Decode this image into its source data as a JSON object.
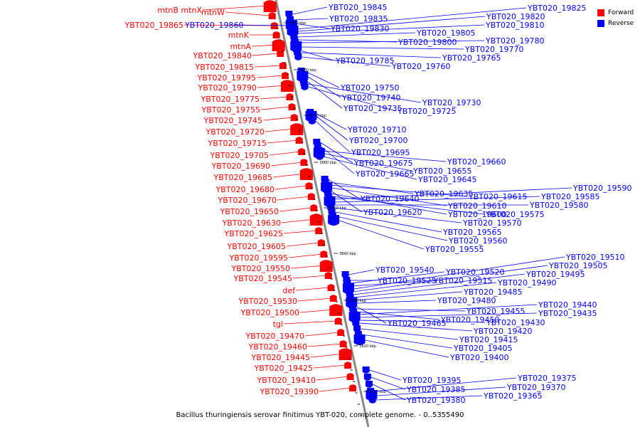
{
  "caption": "Bacillus thuringiensis serovar finitimus YBT-020, complete genome. - 0..5355490",
  "colors": {
    "forward": "#ff0000",
    "reverse": "#0000ff",
    "axis": "#888888",
    "text": "#000000"
  },
  "legend": [
    {
      "label": "Forward",
      "color": "#ff0000"
    },
    {
      "label": "Reverse",
      "color": "#0000ff"
    }
  ],
  "scale_labels": [
    "3890 kbp",
    "3880 kbp",
    "3870 kbp",
    "3860 kbp",
    "3850 kbp",
    "3840 kbp",
    "3830 kbp",
    "3820 kbp",
    "3810 kbp"
  ],
  "forward_labels": [
    "mtnB mtnX",
    "mtnW",
    "YBT020_19865",
    "mtnK",
    "mtnA",
    "YBT020_19840",
    "YBT020_19815",
    "YBT020_19795",
    "YBT020_19790",
    "YBT020_19775",
    "YBT020_19755",
    "YBT020_19745",
    "YBT020_19720",
    "YBT020_19715",
    "YBT020_19705",
    "YBT020_19690",
    "YBT020_19685",
    "YBT020_19680",
    "YBT020_19670",
    "YBT020_19650",
    "YBT020_19630",
    "YBT020_19625",
    "YBT020_19605",
    "YBT020_19595",
    "YBT020_19550",
    "YBT020_19545",
    "def",
    "YBT020_19530",
    "YBT020_19500",
    "tgl",
    "YBT020_19470",
    "YBT020_19460",
    "YBT020_19445",
    "YBT020_19425",
    "YBT020_19410",
    "YBT020_19390"
  ],
  "reverse_labels": [
    "YBT020_19860",
    "YBT020_19845",
    "YBT020_19835",
    "YBT020_19830",
    "YBT020_19825",
    "YBT020_19820",
    "YBT020_19810",
    "YBT020_19805",
    "YBT020_19800",
    "YBT020_19780",
    "YBT020_19770",
    "YBT020_19785",
    "YBT020_19765",
    "YBT020_19760",
    "YBT020_19750",
    "YBT020_19740",
    "YBT020_19735",
    "YBT020_19730",
    "YBT020_19725",
    "YBT020_19710",
    "YBT020_19700",
    "YBT020_19695",
    "YBT020_19675",
    "YBT020_19665",
    "YBT020_19660",
    "YBT020_19655",
    "YBT020_19645",
    "YBT020_19640",
    "YBT020_19635",
    "YBT020_19615",
    "YBT020_19610",
    "YBT020_19620",
    "YBT020_19600",
    "YBT020_19575",
    "YBT020_19590",
    "YBT020_19585",
    "YBT020_19580",
    "YBT020_19570",
    "YBT020_19565",
    "YBT020_19560",
    "YBT020_19555",
    "YBT020_19540",
    "YBT020_19525",
    "YBT020_19520",
    "YBT020_19515",
    "YBT020_19510",
    "YBT020_19505",
    "YBT020_19495",
    "YBT020_19490",
    "YBT020_19485",
    "YBT020_19480",
    "YBT020_19465",
    "YBT020_19455",
    "YBT020_19450",
    "YBT020_19440",
    "YBT020_19435",
    "YBT020_19430",
    "YBT020_19420",
    "YBT020_19415",
    "YBT020_19405",
    "YBT020_19400",
    "YBT020_19395",
    "YBT020_19385",
    "YBT020_19380",
    "YBT020_19375",
    "YBT020_19370",
    "YBT020_19365"
  ]
}
